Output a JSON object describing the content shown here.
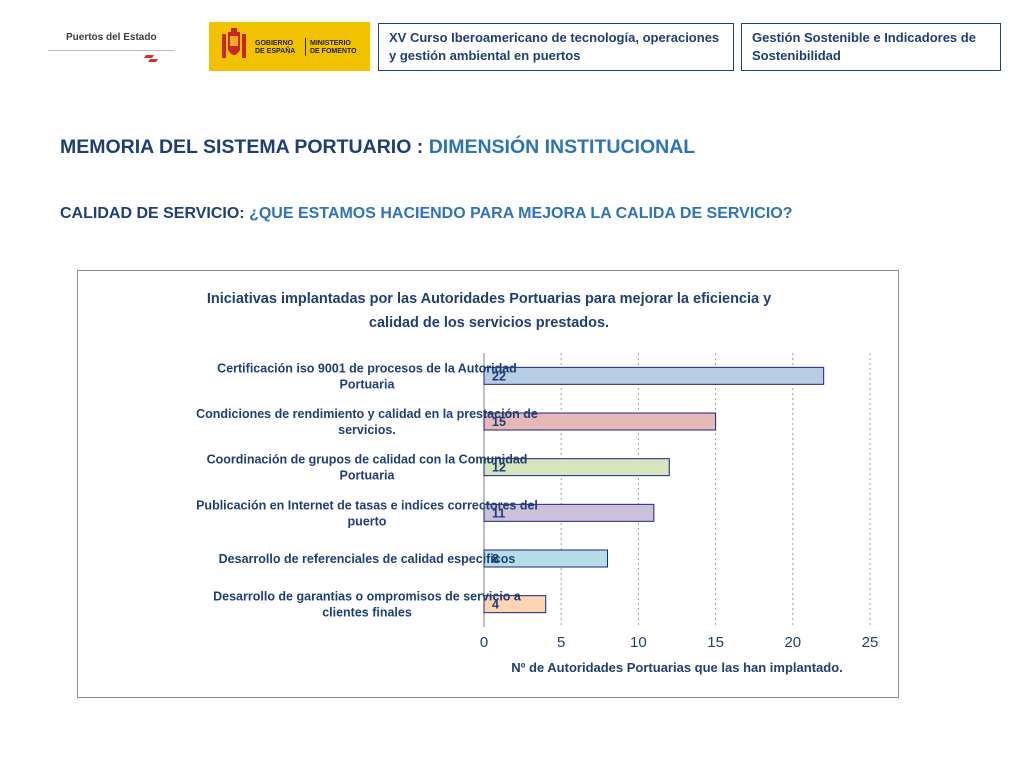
{
  "logos": {
    "puertos_name": "Puertos del Estado",
    "gobierno": [
      "GOBIERNO",
      "DE ESPAÑA"
    ],
    "ministerio": [
      "MINISTERIO",
      "DE FOMENTO"
    ]
  },
  "header": {
    "course": "XV Curso Iberoamericano de tecnología, operaciones y gestión ambiental en puertos",
    "topic": "Gestión Sostenible e Indicadores de Sostenibilidad"
  },
  "slide": {
    "title_main": "MEMORIA DEL SISTEMA PORTUARIO : ",
    "title_highlight": "DIMENSIÓN INSTITUCIONAL",
    "subtitle_main": "CALIDAD DE SERVICIO: ",
    "subtitle_highlight": "¿QUE ESTAMOS HACIENDO PARA MEJORA LA CALIDA DE SERVICIO?"
  },
  "colors": {
    "navy": "#1f3f73",
    "blue": "#2e74b5",
    "axis_text": "#1f3f73",
    "bar_border": "#1a237e"
  },
  "chart_data": {
    "type": "bar",
    "orientation": "horizontal",
    "title": [
      "Iniciativas implantadas por las Autoridades Portuarias para mejorar la eficiencia y",
      "calidad de los servicios prestados."
    ],
    "categories": [
      [
        "Certificación iso 9001 de procesos de la Autoridad",
        "Portuaria"
      ],
      [
        "Condiciones de rendimiento y calidad en la prestación de",
        "servicios."
      ],
      [
        "Coordinación de grupos de calidad con la Comunidad",
        "Portuaria"
      ],
      [
        "Publicación en Internet de tasas e indices correctores del",
        "puerto"
      ],
      [
        "Desarrollo de referenciales de calidad especificos"
      ],
      [
        "Desarrollo de garantias o ompromisos de servicio a",
        "clientes finales"
      ]
    ],
    "values": [
      22,
      15,
      12,
      11,
      8,
      4
    ],
    "bar_colors": [
      "#b8cce4",
      "#e6b9b8",
      "#d7e4bd",
      "#ccc1da",
      "#b7dee8",
      "#fcd5b5"
    ],
    "xlabel": "Nº de Autoridades Portuarias que las han implantado.",
    "xlim": [
      0,
      25
    ],
    "xticks": [
      0,
      5,
      10,
      15,
      20,
      25
    ],
    "grid": "vertical dashed"
  }
}
